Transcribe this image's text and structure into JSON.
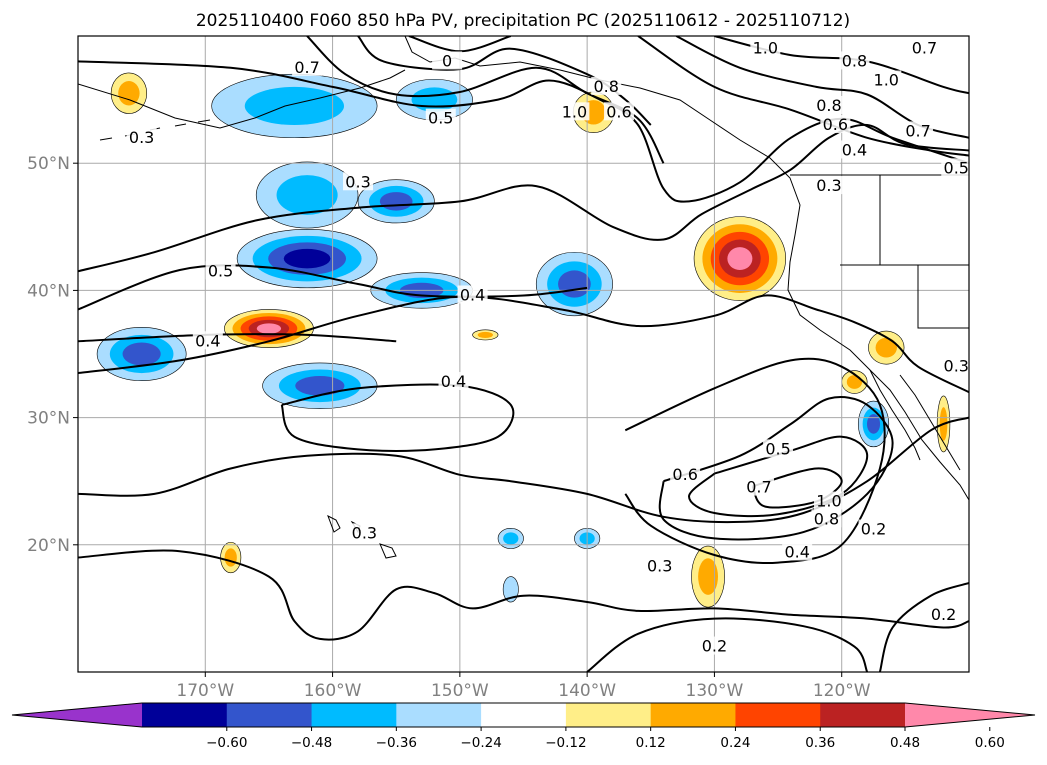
{
  "chart_data": {
    "type": "contour-map",
    "title": "2025110400 F060 850 hPa PV, precipitation PC (2025110612 - 2025110712)",
    "x_ticks": [
      {
        "lon": -170,
        "label": "170°W"
      },
      {
        "lon": -160,
        "label": "160°W"
      },
      {
        "lon": -150,
        "label": "150°W"
      },
      {
        "lon": -140,
        "label": "140°W"
      },
      {
        "lon": -130,
        "label": "130°W"
      },
      {
        "lon": -120,
        "label": "120°W"
      }
    ],
    "y_ticks": [
      {
        "lat": 50,
        "label": "50°N"
      },
      {
        "lat": 40,
        "label": "40°N"
      },
      {
        "lat": 30,
        "label": "30°N"
      },
      {
        "lat": 20,
        "label": "20°N"
      }
    ],
    "lon_range": [
      -180,
      -110
    ],
    "lat_range": [
      10,
      60
    ],
    "grid": true,
    "colorbar": {
      "orientation": "horizontal",
      "extend": "both",
      "levels": [
        -0.72,
        -0.6,
        -0.48,
        -0.36,
        -0.24,
        -0.12,
        0.12,
        0.24,
        0.36,
        0.48,
        0.6,
        0.72
      ],
      "colors": [
        "#9933cc",
        "#000099",
        "#3355cc",
        "#00bbff",
        "#aaddff",
        "#ffffff",
        "#ffee88",
        "#ffaa00",
        "#ff4400",
        "#bb2222",
        "#ff88aa"
      ],
      "tick_labels": [
        "−0.60",
        "−0.48",
        "−0.36",
        "−0.24",
        "−0.12",
        "0.12",
        "0.24",
        "0.36",
        "0.48",
        "0.60"
      ]
    },
    "shaded_regions": [
      {
        "lon": -176,
        "lat": 55.5,
        "rx": 1.4,
        "ry": 1.6,
        "value": 0.3
      },
      {
        "lon": -163,
        "lat": 54.5,
        "rx": 6.5,
        "ry": 2.5,
        "value": -0.28
      },
      {
        "lon": -152,
        "lat": 55,
        "rx": 3,
        "ry": 1.6,
        "value": -0.28
      },
      {
        "lon": -162,
        "lat": 47.5,
        "rx": 4,
        "ry": 2.6,
        "value": -0.26
      },
      {
        "lon": -155,
        "lat": 47,
        "rx": 3,
        "ry": 1.7,
        "value": -0.38
      },
      {
        "lon": -162,
        "lat": 42.5,
        "rx": 5.5,
        "ry": 2.3,
        "value": -0.5
      },
      {
        "lon": -153,
        "lat": 40,
        "rx": 4,
        "ry": 1.4,
        "value": -0.4
      },
      {
        "lon": -175,
        "lat": 35,
        "rx": 3.5,
        "ry": 2.1,
        "value": -0.42
      },
      {
        "lon": -165,
        "lat": 37,
        "rx": 3.5,
        "ry": 1.5,
        "value": 0.62
      },
      {
        "lon": -161,
        "lat": 32.5,
        "rx": 4.5,
        "ry": 1.8,
        "value": -0.38
      },
      {
        "lon": -141,
        "lat": 40.5,
        "rx": 3,
        "ry": 2.5,
        "value": -0.42
      },
      {
        "lon": -139.5,
        "lat": 54,
        "rx": 1.6,
        "ry": 1.6,
        "value": 0.3
      },
      {
        "lon": -128,
        "lat": 42.5,
        "rx": 3.6,
        "ry": 3.3,
        "value": 0.66
      },
      {
        "lon": -116.5,
        "lat": 35.5,
        "rx": 1.4,
        "ry": 1.3,
        "value": 0.28
      },
      {
        "lon": -119,
        "lat": 32.8,
        "rx": 1.0,
        "ry": 0.9,
        "value": 0.3
      },
      {
        "lon": -117.5,
        "lat": 29.5,
        "rx": 1.2,
        "ry": 1.8,
        "value": -0.4
      },
      {
        "lon": -130.5,
        "lat": 17.5,
        "rx": 1.3,
        "ry": 2.4,
        "value": 0.28
      },
      {
        "lon": -168,
        "lat": 19,
        "rx": 0.8,
        "ry": 1.2,
        "value": 0.28
      },
      {
        "lon": -146,
        "lat": 20.5,
        "rx": 1.0,
        "ry": 0.8,
        "value": -0.26
      },
      {
        "lon": -140,
        "lat": 20.5,
        "rx": 1.0,
        "ry": 0.8,
        "value": -0.26
      },
      {
        "lon": -146,
        "lat": 16.5,
        "rx": 0.6,
        "ry": 1.0,
        "value": -0.2
      },
      {
        "lon": -148,
        "lat": 36.5,
        "rx": 1.0,
        "ry": 0.4,
        "value": 0.26
      },
      {
        "lon": -112,
        "lat": 29.5,
        "rx": 0.5,
        "ry": 2.2,
        "value": 0.3
      }
    ],
    "contours": [
      {
        "level": 0.2,
        "points": [
          [
            -140,
            10
          ],
          [
            -136,
            13
          ],
          [
            -130,
            14.2
          ],
          [
            -123,
            13.6
          ],
          [
            -119,
            12
          ],
          [
            -118,
            10
          ]
        ]
      },
      {
        "level": 0.2,
        "points": [
          [
            -110,
            17
          ],
          [
            -113,
            16
          ],
          [
            -116,
            13.5
          ],
          [
            -117,
            10
          ]
        ]
      },
      {
        "level": 0.2,
        "points": [
          [
            -180,
            19
          ],
          [
            -172,
            19.5
          ],
          [
            -165,
            17.5
          ],
          [
            -163,
            14
          ],
          [
            -161,
            12.6
          ],
          [
            -158,
            13.2
          ],
          [
            -155,
            16.5
          ],
          [
            -152,
            16.2
          ],
          [
            -149,
            15
          ],
          [
            -145,
            16
          ],
          [
            -140,
            15.5
          ],
          [
            -136,
            14.8
          ],
          [
            -130,
            15
          ],
          [
            -124,
            14.5
          ],
          [
            -118,
            14.2
          ],
          [
            -112,
            13.5
          ],
          [
            -110,
            14
          ]
        ]
      },
      {
        "level": 0.3,
        "points": [
          [
            -180,
            24
          ],
          [
            -174,
            24
          ],
          [
            -168,
            26
          ],
          [
            -162,
            27
          ],
          [
            -155,
            27
          ],
          [
            -150,
            25.5
          ],
          [
            -146,
            25
          ],
          [
            -140,
            24
          ],
          [
            -134,
            22.2
          ],
          [
            -128,
            21.8
          ],
          [
            -123,
            22.5
          ],
          [
            -118,
            25
          ],
          [
            -113,
            29
          ],
          [
            -110,
            30
          ]
        ]
      },
      {
        "level": 0.3,
        "points": [
          [
            -180,
            41.5
          ],
          [
            -174,
            43
          ],
          [
            -166,
            45.5
          ],
          [
            -158,
            46.5
          ],
          [
            -150,
            47
          ],
          [
            -144,
            48.2
          ],
          [
            -138,
            45
          ],
          [
            -134,
            44
          ],
          [
            -131,
            46
          ],
          [
            -127,
            48
          ],
          [
            -124,
            49.5
          ],
          [
            -121,
            52
          ],
          [
            -118,
            53
          ],
          [
            -115,
            51.5
          ],
          [
            -110,
            51
          ]
        ]
      },
      {
        "level": 0.4,
        "points": [
          [
            -180,
            33.5
          ],
          [
            -172,
            34.5
          ],
          [
            -165,
            36
          ],
          [
            -158,
            38
          ],
          [
            -150,
            39.5
          ],
          [
            -142,
            38.5
          ],
          [
            -136,
            37.2
          ],
          [
            -130,
            38
          ],
          [
            -126,
            39.6
          ],
          [
            -122,
            38.5
          ],
          [
            -119,
            37.5
          ],
          [
            -116,
            36
          ],
          [
            -114,
            34
          ],
          [
            -110,
            32
          ]
        ]
      },
      {
        "level": 0.4,
        "points": [
          [
            -164,
            31
          ],
          [
            -158,
            32.3
          ],
          [
            -150,
            32.5
          ],
          [
            -146,
            31
          ],
          [
            -147,
            28.5
          ],
          [
            -152,
            27.5
          ],
          [
            -158,
            27.5
          ],
          [
            -163,
            28.5
          ],
          [
            -164,
            31
          ]
        ]
      },
      {
        "level": 0.4,
        "points": [
          [
            -137,
            29
          ],
          [
            -130,
            32.3
          ],
          [
            -124,
            34.5
          ],
          [
            -120,
            34
          ],
          [
            -117,
            31
          ],
          [
            -117,
            26
          ],
          [
            -120,
            20
          ],
          [
            -125,
            18.6
          ],
          [
            -130,
            19.2
          ],
          [
            -135,
            21.5
          ],
          [
            -137,
            24
          ]
        ]
      },
      {
        "level": 0.5,
        "points": [
          [
            -180,
            36
          ],
          [
            -170,
            36.5
          ],
          [
            -162,
            36.5
          ],
          [
            -155,
            36
          ]
        ]
      },
      {
        "level": 0.5,
        "points": [
          [
            -180,
            38.5
          ],
          [
            -172,
            41.6
          ],
          [
            -165,
            41.8
          ],
          [
            -158,
            40.5
          ],
          [
            -153,
            39.6
          ],
          [
            -145,
            39.6
          ],
          [
            -140,
            40.2
          ]
        ]
      },
      {
        "level": 0.5,
        "points": [
          [
            -134,
            25
          ],
          [
            -128,
            27
          ],
          [
            -124,
            29.5
          ],
          [
            -121,
            31.5
          ],
          [
            -118,
            31
          ],
          [
            -116,
            28
          ],
          [
            -118,
            24
          ],
          [
            -123,
            21
          ],
          [
            -130,
            20.5
          ],
          [
            -134,
            22
          ],
          [
            -134,
            25
          ]
        ]
      },
      {
        "level": 0.6,
        "points": [
          [
            -130,
            25.6
          ],
          [
            -124,
            27.4
          ],
          [
            -120,
            28.5
          ],
          [
            -118,
            27
          ],
          [
            -120,
            24
          ],
          [
            -125,
            22.4
          ],
          [
            -130,
            22.5
          ],
          [
            -132,
            23.8
          ],
          [
            -130,
            25.6
          ]
        ]
      },
      {
        "level": 0.7,
        "points": [
          [
            -127,
            24.6
          ],
          [
            -122,
            26
          ],
          [
            -120,
            25
          ],
          [
            -122,
            23.4
          ],
          [
            -126,
            23
          ],
          [
            -127,
            24.6
          ]
        ]
      },
      {
        "level": 0.5,
        "points": [
          [
            -180,
            58
          ],
          [
            -168,
            57.5
          ],
          [
            -160,
            56
          ],
          [
            -153,
            54.5
          ],
          [
            -147,
            55
          ],
          [
            -143,
            56.5
          ],
          [
            -139,
            55
          ],
          [
            -136,
            53
          ],
          [
            -134,
            48
          ],
          [
            -132,
            47
          ],
          [
            -128,
            48.5
          ],
          [
            -124,
            52
          ],
          [
            -120,
            53.5
          ],
          [
            -116,
            52
          ],
          [
            -110,
            50
          ]
        ]
      },
      {
        "level": 0.6,
        "points": [
          [
            -162,
            60
          ],
          [
            -159,
            57
          ],
          [
            -155,
            55.4
          ],
          [
            -150,
            55.6
          ],
          [
            -144,
            57.5
          ],
          [
            -140,
            55.5
          ],
          [
            -136,
            53.5
          ],
          [
            -134,
            50
          ]
        ]
      },
      {
        "level": 0.8,
        "points": [
          [
            -158,
            60
          ],
          [
            -156,
            58
          ],
          [
            -150,
            57.4
          ],
          [
            -146,
            59
          ],
          [
            -140,
            57
          ],
          [
            -137,
            55
          ],
          [
            -135,
            53
          ]
        ]
      },
      {
        "level": 1.0,
        "points": [
          [
            -154,
            60
          ],
          [
            -150,
            58.8
          ],
          [
            -146,
            60
          ]
        ]
      },
      {
        "level": 0.8,
        "points": [
          [
            -133,
            60
          ],
          [
            -128,
            57.5
          ],
          [
            -122,
            56
          ],
          [
            -118,
            55.4
          ],
          [
            -114,
            53
          ],
          [
            -110,
            52
          ]
        ]
      },
      {
        "level": 0.7,
        "points": [
          [
            -136,
            60
          ],
          [
            -130,
            56
          ],
          [
            -124,
            54.2
          ],
          [
            -118,
            52
          ],
          [
            -113,
            51
          ],
          [
            -110,
            50.6
          ]
        ]
      },
      {
        "level": 1.0,
        "points": [
          [
            -130,
            60
          ],
          [
            -124,
            58.5
          ],
          [
            -118,
            58
          ],
          [
            -112,
            56
          ],
          [
            -110,
            55.5
          ]
        ]
      }
    ],
    "contour_labels": [
      {
        "lon": -175,
        "lat": 52,
        "text": "0.3"
      },
      {
        "lon": -162,
        "lat": 57.5,
        "text": "0.7"
      },
      {
        "lon": -151,
        "lat": 58,
        "text": "0"
      },
      {
        "lon": -151.5,
        "lat": 53.5,
        "text": "0.5"
      },
      {
        "lon": -141,
        "lat": 54,
        "text": "1.0"
      },
      {
        "lon": -138.5,
        "lat": 56,
        "text": "0.8"
      },
      {
        "lon": -137.5,
        "lat": 54,
        "text": "0.6"
      },
      {
        "lon": -126,
        "lat": 59,
        "text": "1.0"
      },
      {
        "lon": -119,
        "lat": 58,
        "text": "0.8"
      },
      {
        "lon": -113.5,
        "lat": 59,
        "text": "0.7"
      },
      {
        "lon": -116.5,
        "lat": 56.5,
        "text": "1.0"
      },
      {
        "lon": -121,
        "lat": 54.5,
        "text": "0.8"
      },
      {
        "lon": -120.5,
        "lat": 53,
        "text": "0.6"
      },
      {
        "lon": -114,
        "lat": 52.5,
        "text": "0.7"
      },
      {
        "lon": -119,
        "lat": 51,
        "text": "0.4"
      },
      {
        "lon": -111,
        "lat": 49.6,
        "text": "0.5"
      },
      {
        "lon": -121,
        "lat": 48.2,
        "text": "0.3"
      },
      {
        "lon": -158,
        "lat": 48.5,
        "text": "0.3"
      },
      {
        "lon": -168.8,
        "lat": 41.5,
        "text": "0.5"
      },
      {
        "lon": -149,
        "lat": 39.6,
        "text": "0.4"
      },
      {
        "lon": -169.8,
        "lat": 36,
        "text": "0.4"
      },
      {
        "lon": -150.5,
        "lat": 32.8,
        "text": "0.4"
      },
      {
        "lon": -111,
        "lat": 34,
        "text": "0.3"
      },
      {
        "lon": -125,
        "lat": 27.5,
        "text": "0.5"
      },
      {
        "lon": -132.3,
        "lat": 25.5,
        "text": "0.6"
      },
      {
        "lon": -126.5,
        "lat": 24.5,
        "text": "0.7"
      },
      {
        "lon": -121,
        "lat": 23.4,
        "text": "1.0"
      },
      {
        "lon": -121.2,
        "lat": 22,
        "text": "0.8"
      },
      {
        "lon": -123.5,
        "lat": 19.4,
        "text": "0.4"
      },
      {
        "lon": -117.5,
        "lat": 21.2,
        "text": "0.2"
      },
      {
        "lon": -134.3,
        "lat": 18.3,
        "text": "0.3"
      },
      {
        "lon": -157.5,
        "lat": 20.9,
        "text": "0.3"
      },
      {
        "lon": -130,
        "lat": 12,
        "text": "0.2"
      },
      {
        "lon": -112,
        "lat": 14.5,
        "text": "0.2"
      }
    ]
  }
}
